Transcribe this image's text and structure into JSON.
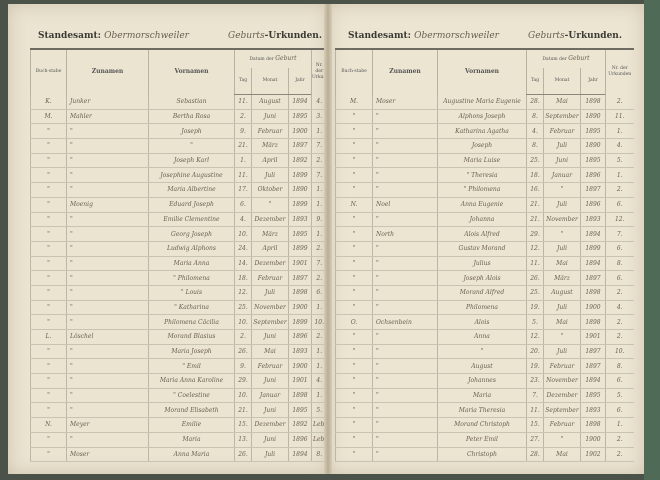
{
  "header": {
    "office_label": "Standesamt:",
    "office_value": "Obermorschweiler",
    "record_type_hand": "Geburts",
    "record_type_print": "-Urkunden."
  },
  "columns": {
    "letter": "Buch-stabe",
    "surname": "Zunamen",
    "given": "Vornamen",
    "date": "Datum der",
    "date_hand": "Geburt",
    "day": "Tag",
    "month": "Monat",
    "year": "Jahr",
    "nr": "Nr. der Urkunden"
  },
  "left_rows": [
    [
      "K.",
      "Junker",
      "Sebastian",
      "11.",
      "August",
      "1894",
      "4."
    ],
    [
      "M.",
      "Mahler",
      "Bertha Rosa",
      "2.",
      "Juni",
      "1895",
      "3."
    ],
    [
      "\"",
      "\"",
      "Joseph",
      "9.",
      "Februar",
      "1900",
      "1."
    ],
    [
      "\"",
      "\"",
      "\"",
      "21.",
      "März",
      "1897",
      "7."
    ],
    [
      "\"",
      "\"",
      "Joseph Karl",
      "1.",
      "April",
      "1892",
      "2."
    ],
    [
      "\"",
      "\"",
      "Josephine Augustine",
      "11.",
      "Juli",
      "1899",
      "7."
    ],
    [
      "\"",
      "\"",
      "Maria Albertine",
      "17.",
      "Oktober",
      "1890",
      "1."
    ],
    [
      "\"",
      "Moenig",
      "Eduard Joseph",
      "6.",
      "\"",
      "1899",
      "1."
    ],
    [
      "\"",
      "\"",
      "Emilie Clementine",
      "4.",
      "Dezember",
      "1893",
      "9."
    ],
    [
      "\"",
      "\"",
      "Georg Joseph",
      "10.",
      "März",
      "1895",
      "1."
    ],
    [
      "\"",
      "\"",
      "Ludwig Alphons",
      "24.",
      "April",
      "1899",
      "2."
    ],
    [
      "\"",
      "\"",
      "Maria Anna",
      "14.",
      "Dezember",
      "1901",
      "7."
    ],
    [
      "\"",
      "\"",
      "\" Philomena",
      "18.",
      "Februar",
      "1897",
      "2."
    ],
    [
      "\"",
      "\"",
      "\" Louis",
      "12.",
      "Juli",
      "1898",
      "6."
    ],
    [
      "\"",
      "\"",
      "\" Katharina",
      "25.",
      "November",
      "1900",
      "1."
    ],
    [
      "\"",
      "\"",
      "Philomena Cäcilia",
      "10.",
      "September",
      "1899",
      "10."
    ],
    [
      "L.",
      "Löschel",
      "Morand Blasius",
      "2.",
      "Juni",
      "1896",
      "2."
    ],
    [
      "\"",
      "\"",
      "Maria Joseph",
      "26.",
      "Mai",
      "1893",
      "1."
    ],
    [
      "\"",
      "\"",
      "\" Emil",
      "9.",
      "Februar",
      "1900",
      "1."
    ],
    [
      "\"",
      "\"",
      "Maria Anna Karoline",
      "29.",
      "Juni",
      "1901",
      "4."
    ],
    [
      "\"",
      "\"",
      "\" Coelestine",
      "10.",
      "Januar",
      "1898",
      "1."
    ],
    [
      "\"",
      "\"",
      "Morand Elisabeth",
      "21.",
      "Juni",
      "1895",
      "5."
    ],
    [
      "N.",
      "Meyer",
      "Emilie",
      "15.",
      "Dezember",
      "1892",
      "Lebendig"
    ],
    [
      "\"",
      "\"",
      "Maria",
      "13.",
      "Juni",
      "1896",
      "Lebendig"
    ],
    [
      "\"",
      "Moser",
      "Anna Maria",
      "26.",
      "Juli",
      "1894",
      "8."
    ]
  ],
  "right_rows": [
    [
      "M.",
      "Moser",
      "Augustine Maria Eugenie",
      "28.",
      "Mai",
      "1898",
      "2."
    ],
    [
      "\"",
      "\"",
      "Alphons Joseph",
      "8.",
      "September",
      "1890",
      "11."
    ],
    [
      "\"",
      "\"",
      "Katharina Agatha",
      "4.",
      "Februar",
      "1895",
      "1."
    ],
    [
      "\"",
      "\"",
      "Joseph",
      "8.",
      "Juli",
      "1890",
      "4."
    ],
    [
      "\"",
      "\"",
      "Maria Luise",
      "25.",
      "Juni",
      "1895",
      "5."
    ],
    [
      "\"",
      "\"",
      "\" Theresia",
      "18.",
      "Januar",
      "1896",
      "1."
    ],
    [
      "\"",
      "\"",
      "\" Philomena",
      "16.",
      "\"",
      "1897",
      "2."
    ],
    [
      "N.",
      "Noel",
      "Anna Eugenie",
      "21.",
      "Juli",
      "1896",
      "6."
    ],
    [
      "\"",
      "\"",
      "Johanna",
      "21.",
      "November",
      "1893",
      "12."
    ],
    [
      "\"",
      "North",
      "Alois Alfred",
      "29.",
      "\"",
      "1894",
      "7."
    ],
    [
      "\"",
      "\"",
      "Gustav Morand",
      "12.",
      "Juli",
      "1899",
      "6."
    ],
    [
      "\"",
      "\"",
      "Julius",
      "11.",
      "Mai",
      "1894",
      "8."
    ],
    [
      "\"",
      "\"",
      "Joseph Alois",
      "26.",
      "März",
      "1897",
      "6."
    ],
    [
      "\"",
      "\"",
      "Morand Alfred",
      "25.",
      "August",
      "1898",
      "2."
    ],
    [
      "\"",
      "\"",
      "Philomena",
      "19.",
      "Juli",
      "1900",
      "4."
    ],
    [
      "O.",
      "Ochsenbein",
      "Alois",
      "5.",
      "Mai",
      "1898",
      "2."
    ],
    [
      "\"",
      "\"",
      "Anna",
      "12.",
      "\"",
      "1901",
      "2."
    ],
    [
      "\"",
      "\"",
      "\"",
      "20.",
      "Juli",
      "1897",
      "10."
    ],
    [
      "\"",
      "\"",
      "August",
      "19.",
      "Februar",
      "1897",
      "8."
    ],
    [
      "\"",
      "\"",
      "Johannes",
      "23.",
      "November",
      "1894",
      "6."
    ],
    [
      "\"",
      "\"",
      "Maria",
      "7.",
      "Dezember",
      "1895",
      "5."
    ],
    [
      "\"",
      "\"",
      "Maria Theresia",
      "11.",
      "September",
      "1893",
      "6."
    ],
    [
      "\"",
      "\"",
      "Morand Christoph",
      "15.",
      "Februar",
      "1898",
      "1."
    ],
    [
      "\"",
      "\"",
      "Peter Emil",
      "27.",
      "\"",
      "1900",
      "2."
    ],
    [
      "\"",
      "\"",
      "Christoph",
      "28.",
      "Mai",
      "1902",
      "2."
    ]
  ]
}
